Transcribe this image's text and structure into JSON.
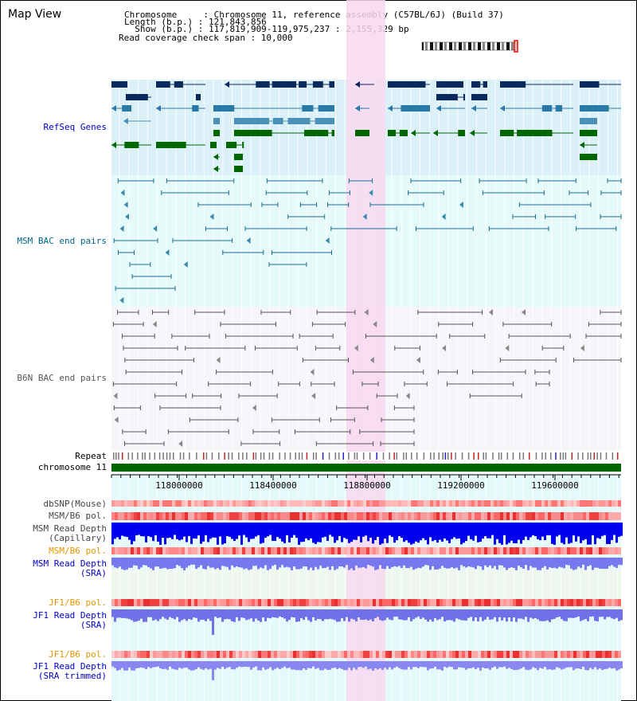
{
  "app": {
    "title": "Map View"
  },
  "header": {
    "chromosome_line": "Chromosome     : Chromosome 11, reference assembly (C57BL/6J) (Build 37)",
    "length_line": "Length (b.p.) : 121,843,856",
    "show_line": "  Show (b.p.) : 117,819,909-119,975,237 : 2,155,329 bp",
    "coverage_line": "Read coverage check span : 10,000"
  },
  "tracks": {
    "refseq": "RefSeq Genes",
    "msm_bac": "MSM BAC end pairs",
    "b6n_bac": "B6N BAC end pairs",
    "repeat": "Repeat",
    "chromosome": "chromosome 11",
    "dbsnp": "dbSNP(Mouse)",
    "msm_b6_pol": "MSM/B6 pol.",
    "msm_read_depth_cap": "MSM Read Depth\n(Capillary)",
    "msm_b6_pol_sra": "MSM/B6 pol.",
    "msm_read_depth_sra": "MSM Read Depth\n(SRA)",
    "jf1_b6_pol": "JF1/B6 pol.",
    "jf1_read_depth_sra": "JF1 Read Depth\n(SRA)",
    "jf1_b6_pol_trim": "JF1/B6 pol.",
    "jf1_read_depth_trim": "JF1 Read Depth\n(SRA trimmed)"
  },
  "axis": {
    "ticks": [
      "118000000",
      "118400000",
      "118800000",
      "119200000",
      "119600000"
    ]
  },
  "colors": {
    "refseq_label": "#0000cc",
    "msm_label": "#006688",
    "b6n_label": "#555555",
    "orange_label": "#e69500",
    "blue_label": "#0000cc",
    "highlight": "#f8d8f0",
    "chromosome_bar": "#006600"
  }
}
